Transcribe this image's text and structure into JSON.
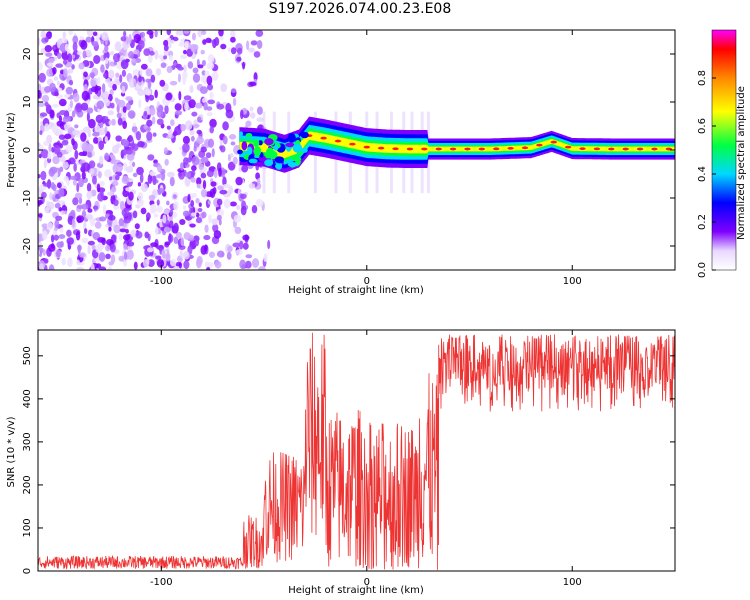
{
  "title": "S197.2026.074.00.23.E08",
  "chart_data": [
    {
      "type": "heatmap",
      "name": "spectrogram",
      "xlabel": "Height of straight line (km)",
      "ylabel": "Frequency (Hz)",
      "xlim": [
        -160,
        150
      ],
      "ylim": [
        -25,
        25
      ],
      "xticks": [
        -100,
        0,
        100
      ],
      "yticks": [
        -20,
        -10,
        0,
        10,
        20
      ],
      "xtick_labels": [
        "-100",
        "0",
        "100"
      ],
      "ytick_labels": [
        "-20",
        "-10",
        "0",
        "10",
        "20"
      ],
      "noise_region_x": [
        -160,
        -55
      ],
      "ridge": {
        "x": [
          -62,
          -50,
          -40,
          -33,
          -28,
          -20,
          -10,
          0,
          10,
          20,
          30,
          60,
          80,
          90,
          100,
          120,
          150
        ],
        "freq": [
          0.8,
          0.5,
          -0.8,
          0.3,
          3.0,
          2.4,
          1.5,
          0.6,
          0.3,
          0.2,
          0.2,
          0.2,
          0.5,
          1.8,
          0.3,
          0.2,
          0.2
        ]
      },
      "colorbar": {
        "label": "Normalized spectral amplitude",
        "range": [
          0,
          1
        ],
        "ticks": [
          0.0,
          0.2,
          0.4,
          0.6,
          0.8
        ],
        "tick_labels": [
          "0.0",
          "0.2",
          "0.4",
          "0.6",
          "0.8"
        ],
        "colors": [
          "#ffffff",
          "#e8d8ff",
          "#7f00ff",
          "#0000ff",
          "#00d8ff",
          "#00ff44",
          "#ffff00",
          "#ff8800",
          "#ff0000",
          "#ff00ff"
        ]
      }
    },
    {
      "type": "line",
      "name": "snr",
      "xlabel": "Height of straight line (km)",
      "ylabel": "SNR (10 * v/v)",
      "xlim": [
        -160,
        150
      ],
      "ylim": [
        0,
        560
      ],
      "xticks": [
        -100,
        0,
        100
      ],
      "yticks": [
        0,
        100,
        200,
        300,
        400,
        500
      ],
      "xtick_labels": [
        "-100",
        "0",
        "100"
      ],
      "ytick_labels": [
        "0",
        "100",
        "200",
        "300",
        "400",
        "500"
      ],
      "color": "#ee3333",
      "segments": [
        {
          "x": [
            -160,
            -60
          ],
          "low": 5,
          "high": 35
        },
        {
          "x": [
            -60,
            -50
          ],
          "low": 5,
          "high": 130
        },
        {
          "x": [
            -50,
            -30
          ],
          "low": 20,
          "high": 280
        },
        {
          "x": [
            -30,
            -20
          ],
          "low": 60,
          "high": 560
        },
        {
          "x": [
            -20,
            0
          ],
          "low": 5,
          "high": 380
        },
        {
          "x": [
            0,
            25
          ],
          "low": 5,
          "high": 350
        },
        {
          "x": [
            25,
            35
          ],
          "low": 5,
          "high": 460
        },
        {
          "x": [
            35,
            150
          ],
          "low": 370,
          "high": 550
        }
      ]
    }
  ]
}
